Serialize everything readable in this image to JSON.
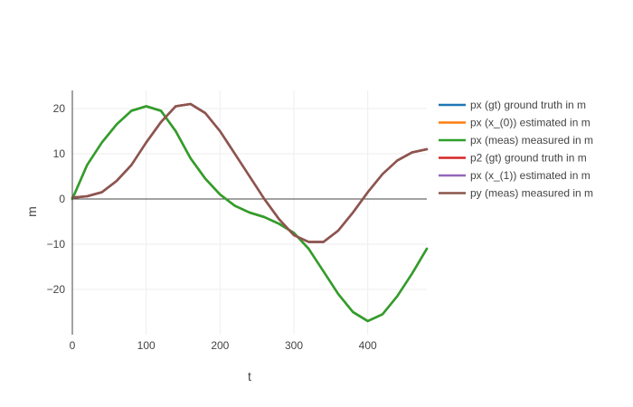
{
  "chart_data": {
    "type": "line",
    "title": "",
    "xlabel": "t",
    "ylabel": "m",
    "xlim": [
      0,
      480
    ],
    "ylim": [
      -30,
      24
    ],
    "x_ticks": [
      0,
      100,
      200,
      300,
      400
    ],
    "y_ticks": [
      -20,
      -10,
      0,
      10,
      20
    ],
    "x_tick_labels": [
      "0",
      "100",
      "200",
      "300",
      "400"
    ],
    "y_tick_labels": [
      "−20",
      "−10",
      "0",
      "10",
      "20"
    ],
    "grid": true,
    "legend_position": "right",
    "series": [
      {
        "name": "px (gt) ground truth in m",
        "color": "#1f77b4",
        "x": [
          0,
          20,
          40,
          60,
          80,
          100,
          120,
          140,
          160,
          180,
          200,
          220,
          240,
          260,
          280,
          300,
          320,
          340,
          360,
          380,
          400,
          420,
          440,
          460,
          480
        ],
        "y": [
          0,
          7.5,
          12.5,
          16.5,
          19.5,
          20.5,
          19.5,
          15,
          9,
          4.5,
          1,
          -1.5,
          -3,
          -4,
          -5.5,
          -7.5,
          -11,
          -16,
          -21,
          -25,
          -27,
          -25.5,
          -21.5,
          -16.5,
          -11
        ]
      },
      {
        "name": "px (x_(0)) estimated in m",
        "color": "#ff7f0e",
        "x": [
          0,
          20,
          40,
          60,
          80,
          100,
          120,
          140,
          160,
          180,
          200,
          220,
          240,
          260,
          280,
          300,
          320,
          340,
          360,
          380,
          400,
          420,
          440,
          460,
          480
        ],
        "y": [
          0,
          7.5,
          12.5,
          16.5,
          19.5,
          20.5,
          19.5,
          15,
          9,
          4.5,
          1,
          -1.5,
          -3,
          -4,
          -5.5,
          -7.5,
          -11,
          -16,
          -21,
          -25,
          -27,
          -25.5,
          -21.5,
          -16.5,
          -11
        ]
      },
      {
        "name": "px (meas) measured in m",
        "color": "#2ca02c",
        "x": [
          0,
          20,
          40,
          60,
          80,
          100,
          120,
          140,
          160,
          180,
          200,
          220,
          240,
          260,
          280,
          300,
          320,
          340,
          360,
          380,
          400,
          420,
          440,
          460,
          480
        ],
        "y": [
          0,
          7.5,
          12.5,
          16.5,
          19.5,
          20.5,
          19.5,
          15,
          9,
          4.5,
          1,
          -1.5,
          -3,
          -4,
          -5.5,
          -7.5,
          -11,
          -16,
          -21,
          -25,
          -27,
          -25.5,
          -21.5,
          -16.5,
          -11
        ]
      },
      {
        "name": "p2 (gt) ground truth in m",
        "color": "#d62728",
        "x": [
          0,
          20,
          40,
          60,
          80,
          100,
          120,
          140,
          160,
          180,
          200,
          220,
          240,
          260,
          280,
          300,
          320,
          340,
          360,
          380,
          400,
          420,
          440,
          460,
          480
        ],
        "y": [
          0.3,
          0.6,
          1.5,
          4,
          7.5,
          12.5,
          17,
          20.5,
          21,
          19,
          15,
          10,
          5,
          0,
          -4.5,
          -8,
          -9.5,
          -9.5,
          -7,
          -3,
          1.5,
          5.5,
          8.5,
          10.3,
          11
        ]
      },
      {
        "name": "px (x_(1)) estimated in m",
        "color": "#9467bd",
        "x": [
          0,
          20,
          40,
          60,
          80,
          100,
          120,
          140,
          160,
          180,
          200,
          220,
          240,
          260,
          280,
          300,
          320,
          340,
          360,
          380,
          400,
          420,
          440,
          460,
          480
        ],
        "y": [
          0.3,
          0.6,
          1.5,
          4,
          7.5,
          12.5,
          17,
          20.5,
          21,
          19,
          15,
          10,
          5,
          0,
          -4.5,
          -8,
          -9.5,
          -9.5,
          -7,
          -3,
          1.5,
          5.5,
          8.5,
          10.3,
          11
        ]
      },
      {
        "name": "py (meas) measured in m",
        "color": "#8c564b",
        "x": [
          0,
          20,
          40,
          60,
          80,
          100,
          120,
          140,
          160,
          180,
          200,
          220,
          240,
          260,
          280,
          300,
          320,
          340,
          360,
          380,
          400,
          420,
          440,
          460,
          480
        ],
        "y": [
          0.3,
          0.6,
          1.5,
          4,
          7.5,
          12.5,
          17,
          20.5,
          21,
          19,
          15,
          10,
          5,
          0,
          -4.5,
          -8,
          -9.5,
          -9.5,
          -7,
          -3,
          1.5,
          5.5,
          8.5,
          10.3,
          11
        ]
      }
    ]
  }
}
